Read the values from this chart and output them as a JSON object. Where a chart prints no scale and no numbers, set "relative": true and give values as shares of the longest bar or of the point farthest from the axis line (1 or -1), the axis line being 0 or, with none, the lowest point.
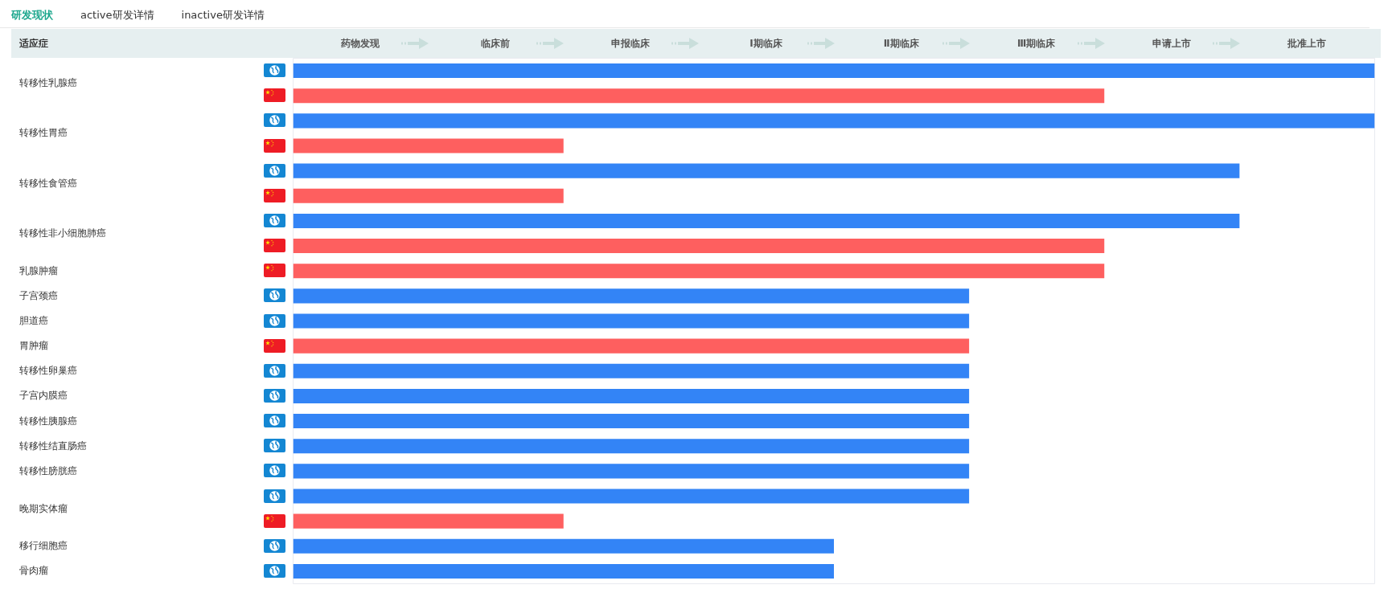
{
  "chart_data": {
    "type": "bar",
    "orientation": "horizontal",
    "relative": true,
    "title": "研发现状",
    "ylabel": "适应症",
    "annotations": [
      "active研发详情",
      "inactive研发详情",
      "药物发现",
      "临床前",
      "申报临床",
      "Ⅰ期临床",
      "Ⅱ期临床",
      "Ⅲ期临床",
      "申请上市",
      "批准上市"
    ],
    "categories": [
      "转移性乳腺癌",
      null,
      "转移性胃癌",
      null,
      "转移性食管癌",
      null,
      "转移性非小细胞肺癌",
      null,
      "乳腺肿瘤",
      "子宫颈癌",
      "胆道癌",
      "胃肿瘤",
      "转移性卵巢癌",
      "子宫内膜癌",
      "转移性胰腺癌",
      "转移性结直肠癌",
      "转移性膀胱癌",
      "晚期实体瘤",
      null,
      "移行细胞癌",
      "骨肉瘤"
    ],
    "series": [
      {
        "color": "#3384f6",
        "values": [
          1,
          null,
          1,
          null,
          0.875,
          null,
          0.875,
          null,
          null,
          0.625,
          0.625,
          null,
          0.625,
          0.625,
          0.625,
          0.625,
          0.625,
          0.625,
          null,
          0.5,
          0.5
        ]
      },
      {
        "color": "#fe5f5f",
        "values": [
          null,
          0.75,
          null,
          0.25,
          null,
          0.25,
          null,
          0.75,
          0.75,
          null,
          null,
          0.625,
          null,
          null,
          null,
          null,
          null,
          null,
          0.25,
          null,
          null
        ]
      }
    ],
    "grid": false
  }
}
